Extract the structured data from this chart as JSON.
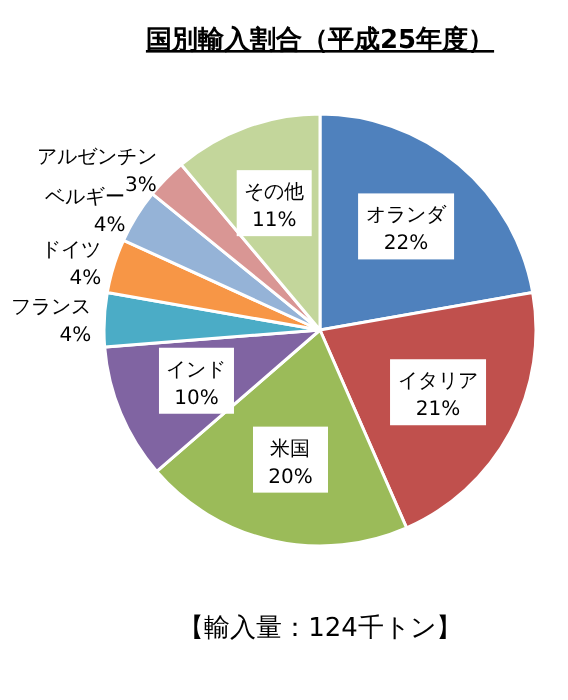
{
  "chart_data": {
    "type": "pie",
    "title": "国別輸入割合（平成25年度）",
    "categories": [
      "オランダ",
      "イタリア",
      "米国",
      "インド",
      "フランス",
      "ドイツ",
      "ベルギー",
      "アルゼンチン",
      "その他"
    ],
    "values": [
      22,
      21,
      20,
      10,
      4,
      4,
      4,
      3,
      11
    ],
    "value_labels": [
      "22%",
      "21%",
      "20%",
      "10%",
      "4%",
      "4%",
      "4%",
      "3%",
      "11%"
    ],
    "colors": [
      "#4f81bd",
      "#c0504d",
      "#9bbb59",
      "#8064a2",
      "#4bacc6",
      "#f79646",
      "#95b3d7",
      "#d99694",
      "#c3d69b"
    ],
    "annotations": [
      "【輸入量：124千トン】"
    ]
  }
}
